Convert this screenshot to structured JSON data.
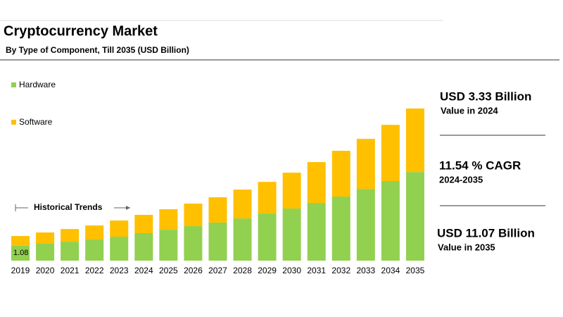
{
  "chart_data": {
    "type": "stacked-bar",
    "title": "Cryptocurrency Market",
    "subtitle": "By Type of Component, Till 2035 (USD Billion)",
    "categories": [
      "2019",
      "2020",
      "2021",
      "2022",
      "2023",
      "2024",
      "2025",
      "2026",
      "2027",
      "2028",
      "2029",
      "2030",
      "2031",
      "2032",
      "2033",
      "2034",
      "2035"
    ],
    "series": [
      {
        "name": "Hardware",
        "color": "#92d050",
        "values": [
          1.08,
          1.23,
          1.38,
          1.54,
          1.74,
          2.0,
          2.25,
          2.51,
          2.77,
          3.07,
          3.43,
          3.79,
          4.2,
          4.66,
          5.22,
          5.79,
          6.45
        ]
      },
      {
        "name": "Software",
        "color": "#ffc000",
        "values": [
          0.71,
          0.82,
          0.92,
          1.02,
          1.18,
          1.33,
          1.49,
          1.64,
          1.84,
          2.1,
          2.3,
          2.61,
          2.97,
          3.33,
          3.64,
          4.09,
          4.62
        ]
      }
    ],
    "annotation": "Historical Trends",
    "highlights": [
      {
        "headline": "USD 3.33 Billion",
        "caption": "Value in 2024"
      },
      {
        "headline": "11.54 % CAGR",
        "caption": "2024-2035"
      },
      {
        "headline": "USD 11.07 Billion",
        "caption": "Value in 2035"
      }
    ]
  }
}
